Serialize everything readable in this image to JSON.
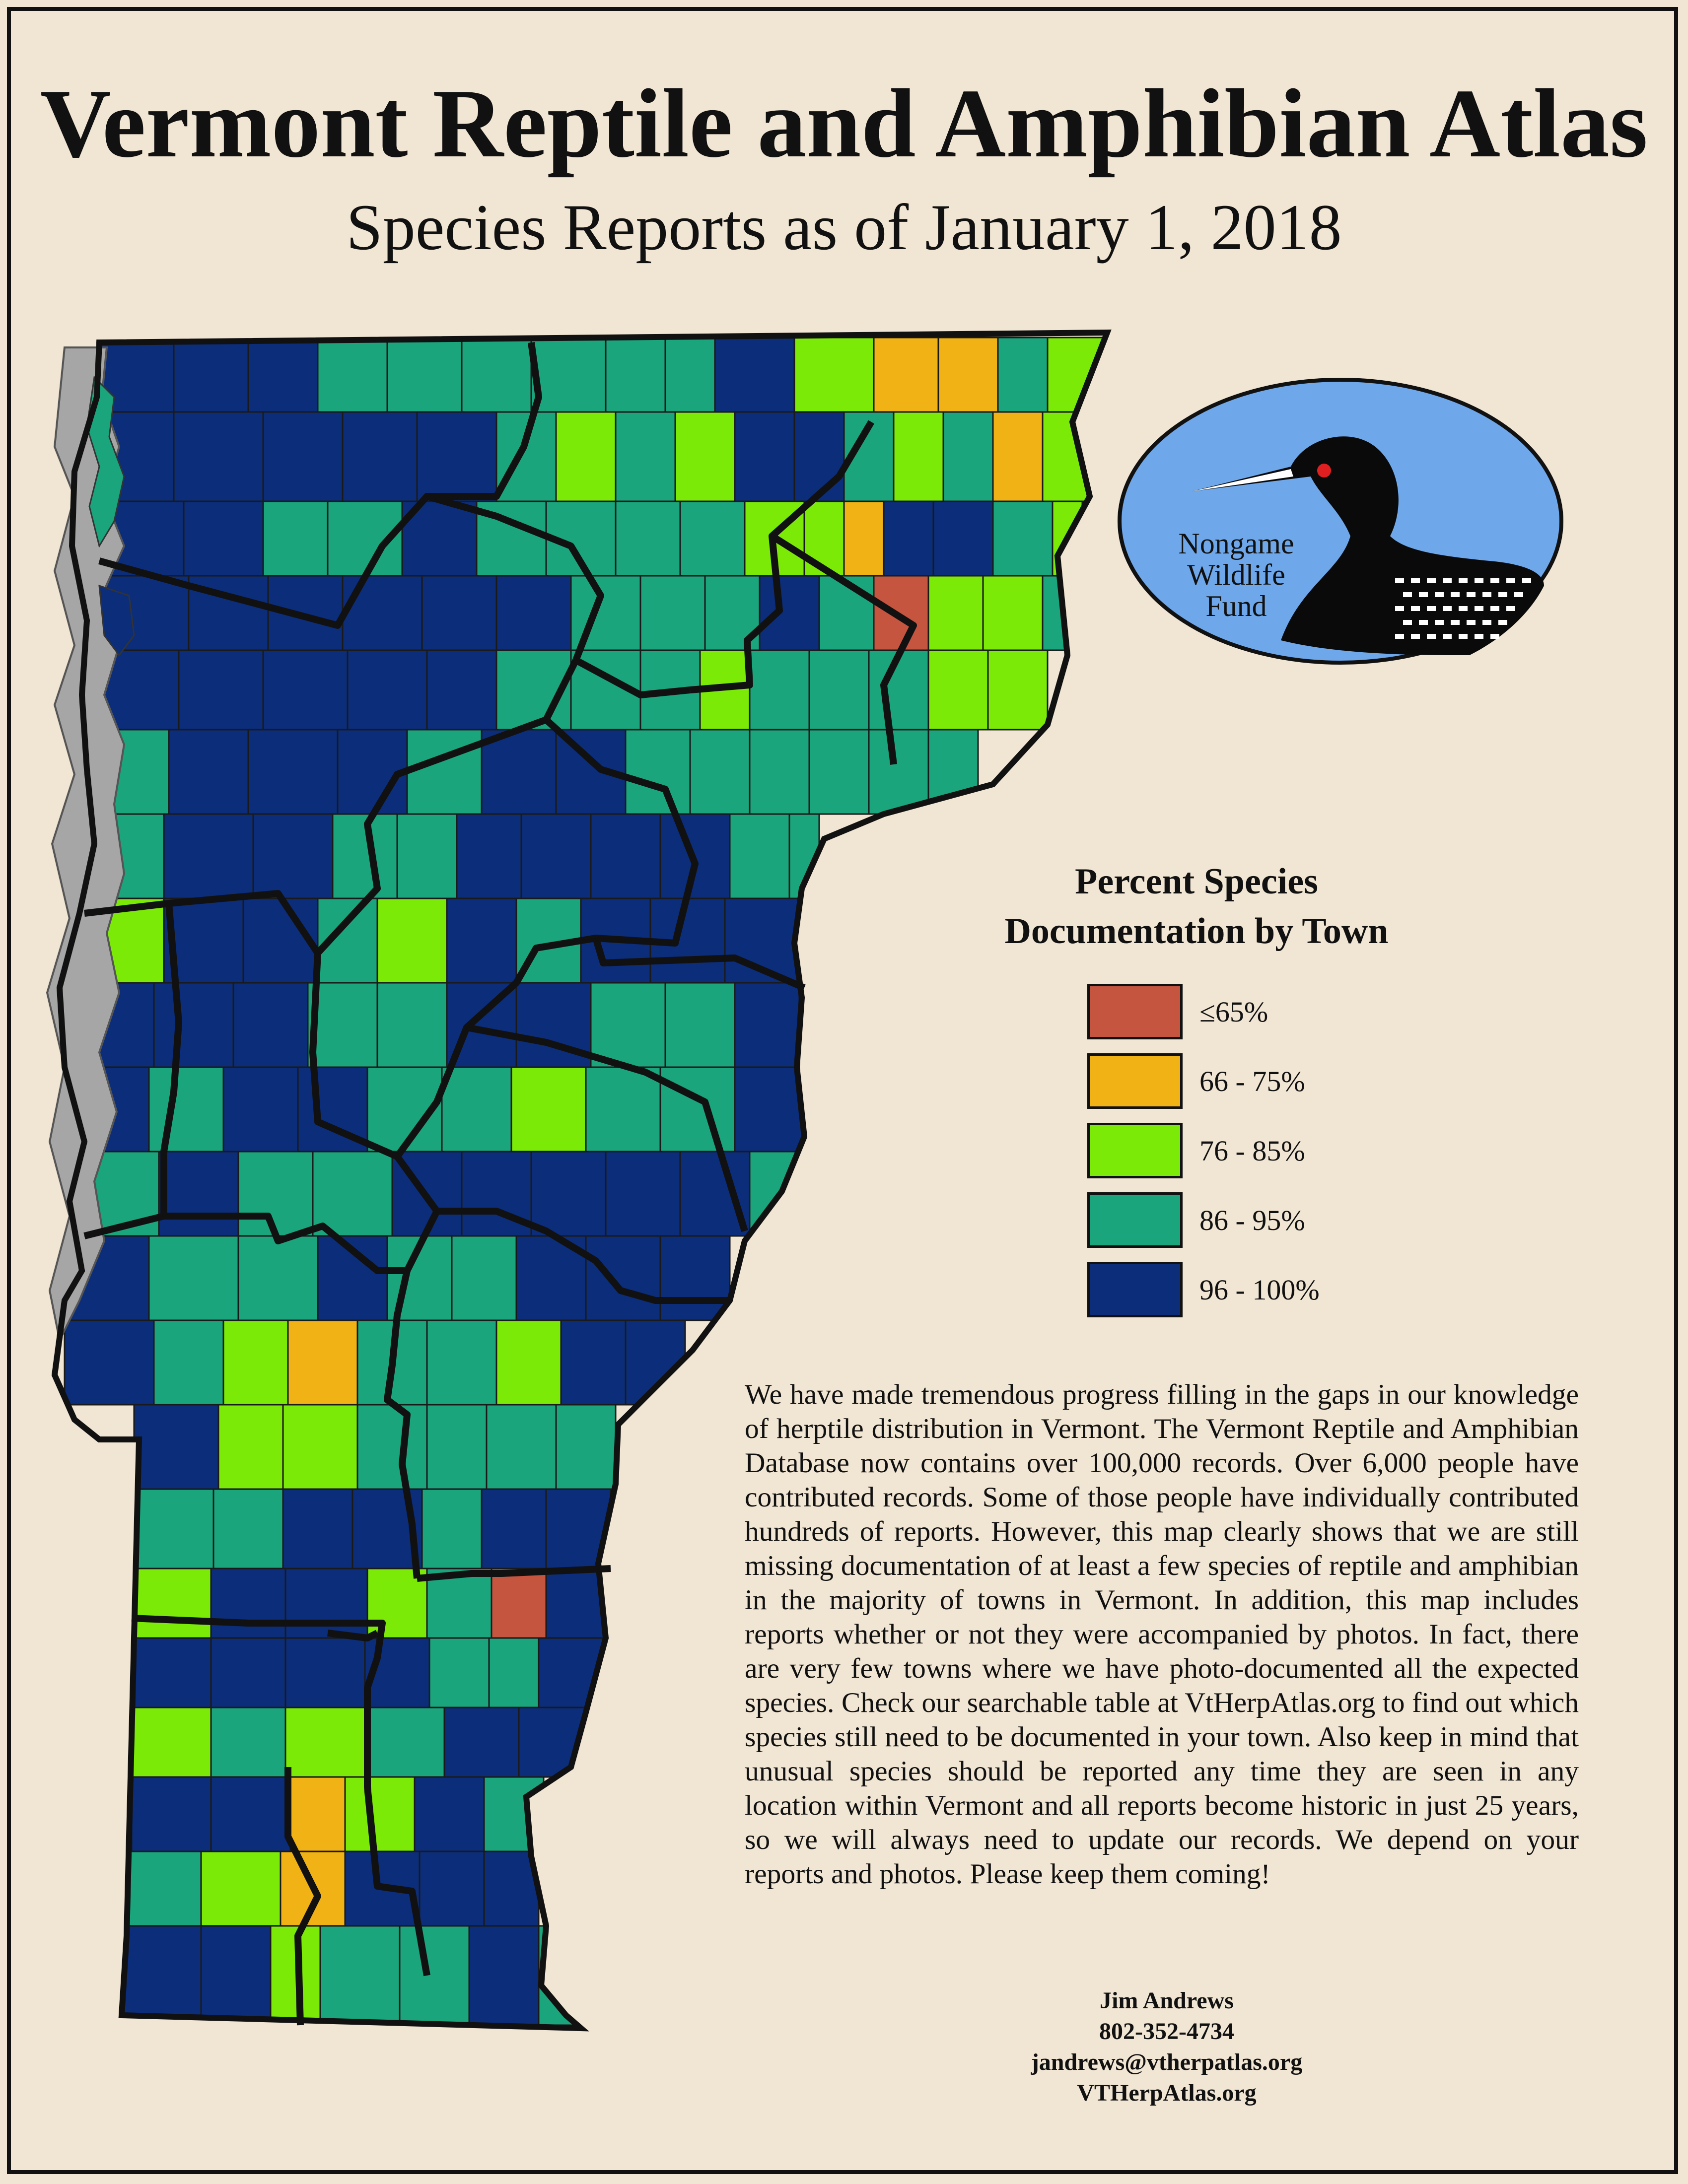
{
  "title": "Vermont Reptile and Amphibian Atlas",
  "subtitle": "Species Reports as of January 1, 2018",
  "logo": {
    "lines": [
      "Nongame",
      "Wildlife",
      "Fund"
    ],
    "icon": "loon-icon"
  },
  "legend": {
    "title_lines": [
      "Percent Species",
      "Documentation by Town"
    ],
    "items": [
      {
        "label": "≤65%",
        "color": "#c65540"
      },
      {
        "label": "66 - 75%",
        "color": "#f0b214"
      },
      {
        "label": "76 - 85%",
        "color": "#7bea07"
      },
      {
        "label": "86 - 95%",
        "color": "#1aa57d"
      },
      {
        "label": "96 - 100%",
        "color": "#0b2d7a"
      }
    ]
  },
  "description": "We have made tremendous progress filling in the gaps in our knowledge of herptile distribution in Vermont. The Vermont Reptile and Amphibian Database now contains over 100,000 records. Over 6,000 people have contributed records. Some of those people have individually contributed hundreds of reports. However, this map clearly shows that we are still missing documentation of at least a few species of reptile and amphibian in the majority of towns in Vermont. In addition, this map includes reports whether or not they were accompanied by photos. In fact, there are very few towns where we have photo-documented all the expected species. Check our searchable table at VtHerpAtlas.org to find out which species still need to be documented in your town. Also keep in mind that unusual species should be reported any time they are seen in any location within Vermont and all reports become historic in just 25 years, so we will always need to update our records. We depend on your reports and photos. Please keep them coming!",
  "contact": {
    "name": "Jim Andrews",
    "phone": "802-352-4734",
    "email": "jandrews@vtherpatlas.org",
    "website": "VTHerpAtlas.org"
  },
  "colors": {
    "background": "#f1e5d3",
    "lake": "#a6a6a6",
    "logo_sky": "#6ea7ea"
  }
}
